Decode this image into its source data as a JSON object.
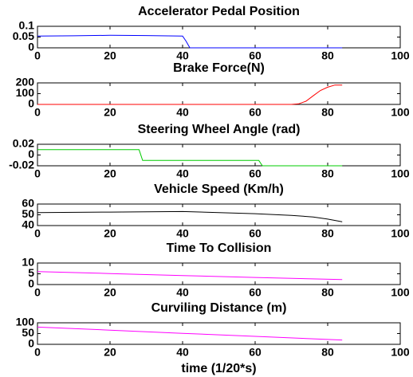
{
  "chart_data": [
    {
      "type": "line",
      "title": "Accelerator Pedal Position",
      "color": "#0000ff",
      "x": [
        0,
        10,
        20,
        30,
        40,
        41,
        42,
        50,
        60,
        70,
        80,
        84
      ],
      "values": [
        0.055,
        0.056,
        0.058,
        0.057,
        0.055,
        0.03,
        0,
        0,
        0,
        0,
        0,
        0
      ],
      "xlim": [
        0,
        100
      ],
      "xticks": [
        0,
        20,
        40,
        60,
        80,
        100
      ],
      "ylim": [
        0,
        0.1
      ],
      "yticks": [
        0,
        0.05,
        0.1
      ]
    },
    {
      "type": "line",
      "title": "Brake Force(N)",
      "color": "#ff0000",
      "x": [
        0,
        20,
        40,
        60,
        70,
        72,
        74,
        76,
        78,
        80,
        82,
        84
      ],
      "values": [
        0,
        0,
        0,
        0,
        0,
        5,
        30,
        80,
        130,
        160,
        180,
        180
      ],
      "xlim": [
        0,
        100
      ],
      "xticks": [
        0,
        20,
        40,
        60,
        80,
        100
      ],
      "ylim": [
        0,
        200
      ],
      "yticks": [
        0,
        100,
        200
      ]
    },
    {
      "type": "line",
      "title": "Steering Wheel Angle (rad)",
      "color": "#00cc00",
      "x": [
        0,
        28,
        29,
        61,
        62,
        84
      ],
      "values": [
        0.01,
        0.01,
        -0.01,
        -0.01,
        -0.02,
        -0.02
      ],
      "xlim": [
        0,
        100
      ],
      "xticks": [
        0,
        20,
        40,
        60,
        80,
        100
      ],
      "ylim": [
        -0.02,
        0.02
      ],
      "yticks": [
        -0.02,
        0,
        0.02
      ]
    },
    {
      "type": "line",
      "title": "Vehicle Speed (Km/h)",
      "color": "#000000",
      "x": [
        0,
        20,
        40,
        60,
        70,
        76,
        80,
        84
      ],
      "values": [
        52,
        52.5,
        53,
        51,
        49.5,
        48,
        46,
        43.5
      ],
      "xlim": [
        0,
        100
      ],
      "xticks": [
        0,
        20,
        40,
        60,
        80,
        100
      ],
      "ylim": [
        40,
        60
      ],
      "yticks": [
        40,
        50,
        60
      ]
    },
    {
      "type": "line",
      "title": "Time To Collision",
      "color": "#ff00ff",
      "x": [
        0,
        20,
        40,
        60,
        84
      ],
      "values": [
        6,
        5.1,
        4.2,
        3.3,
        2.3
      ],
      "xlim": [
        0,
        100
      ],
      "xticks": [
        0,
        20,
        40,
        60,
        80,
        100
      ],
      "ylim": [
        0,
        10
      ],
      "yticks": [
        0,
        5,
        10
      ]
    },
    {
      "type": "line",
      "title": "Curviling Distance (m)",
      "color": "#ff00ff",
      "xlabel": "time (1/20*s)",
      "x": [
        0,
        20,
        40,
        60,
        84
      ],
      "values": [
        80,
        66,
        51,
        37,
        20
      ],
      "xlim": [
        0,
        100
      ],
      "xticks": [
        0,
        20,
        40,
        60,
        80,
        100
      ],
      "ylim": [
        0,
        100
      ],
      "yticks": [
        0,
        50,
        100
      ]
    }
  ]
}
